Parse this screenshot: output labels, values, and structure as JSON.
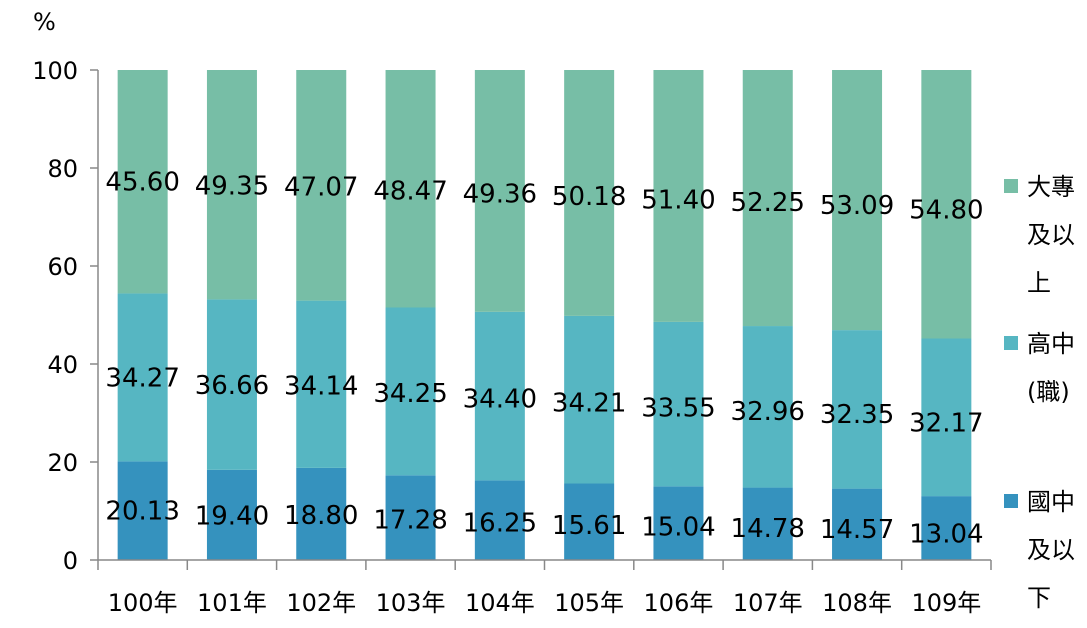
{
  "chart_data": {
    "type": "bar",
    "stacked": true,
    "unit_label": "%",
    "categories": [
      "100年",
      "101年",
      "102年",
      "103年",
      "104年",
      "105年",
      "106年",
      "107年",
      "108年",
      "109年"
    ],
    "series": [
      {
        "name": "國中及以下",
        "legend_lines": [
          "國中",
          "及以",
          "下"
        ],
        "color": "#3592BE",
        "values": [
          20.13,
          19.4,
          18.8,
          17.28,
          16.25,
          15.61,
          15.04,
          14.78,
          14.57,
          13.04
        ],
        "labels": [
          "20.13",
          "19.40",
          "18.80",
          "17.28",
          "16.25",
          "15.61",
          "15.04",
          "14.78",
          "14.57",
          "13.04"
        ]
      },
      {
        "name": "高中(職)",
        "legend_lines": [
          "高中",
          "(職)"
        ],
        "color": "#56B6C2",
        "values": [
          34.27,
          36.66,
          34.14,
          34.25,
          34.4,
          34.21,
          33.55,
          32.96,
          32.35,
          32.17
        ],
        "labels": [
          "34.27",
          "36.66",
          "34.14",
          "34.25",
          "34.40",
          "34.21",
          "33.55",
          "32.96",
          "32.35",
          "32.17"
        ]
      },
      {
        "name": "大專及以上",
        "legend_lines": [
          "大專",
          "及以",
          "上"
        ],
        "color": "#77BEA6",
        "values": [
          45.6,
          49.35,
          47.07,
          48.47,
          49.36,
          50.18,
          51.4,
          52.25,
          53.09,
          54.8
        ],
        "labels": [
          "45.60",
          "49.35",
          "47.07",
          "48.47",
          "49.36",
          "50.18",
          "51.40",
          "52.25",
          "53.09",
          "54.80"
        ]
      }
    ],
    "yticks": [
      "0",
      "20",
      "40",
      "60",
      "80",
      "100"
    ],
    "ylim": [
      0,
      100
    ],
    "legend_position": "right",
    "grid": false
  }
}
